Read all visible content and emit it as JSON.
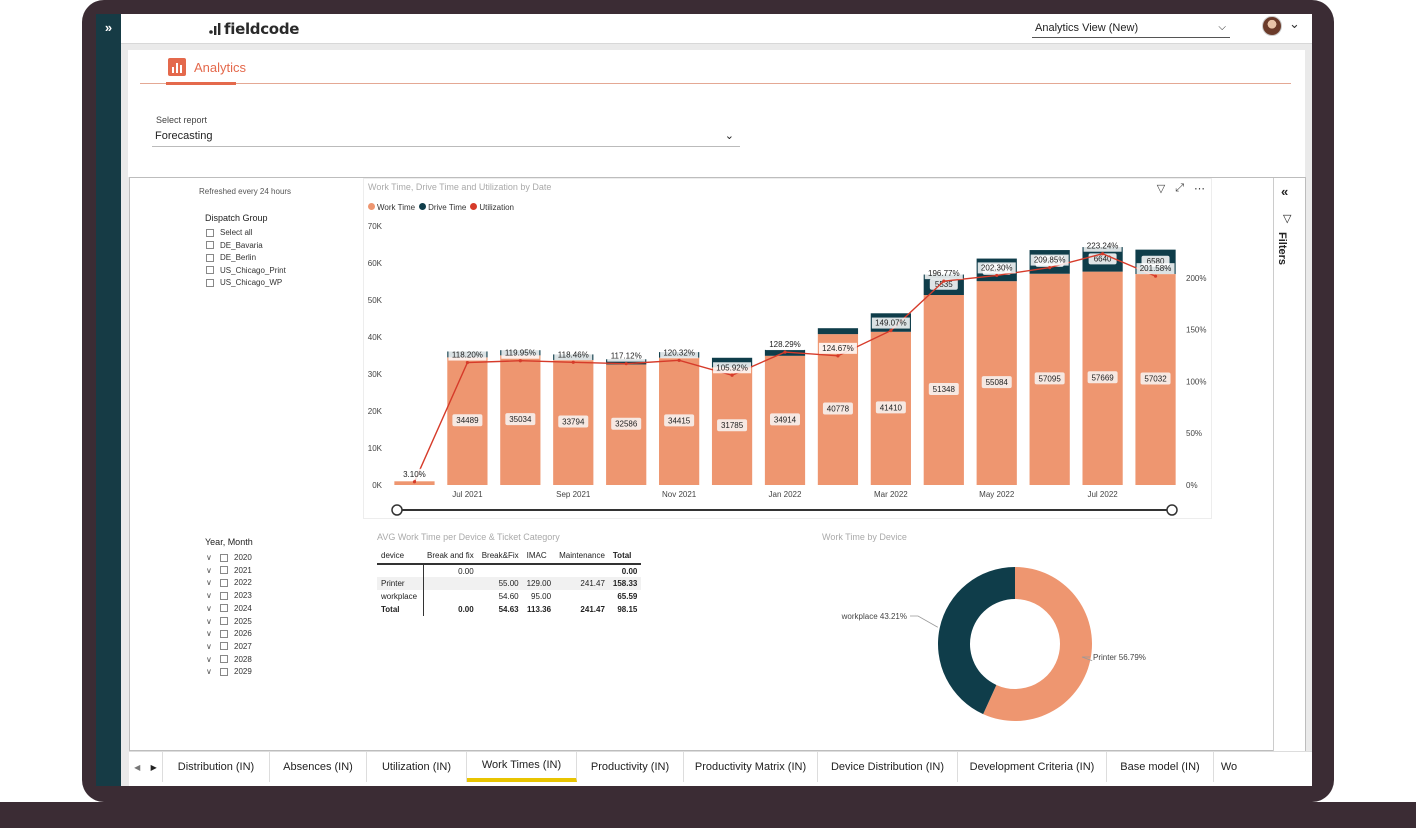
{
  "app": {
    "logo_text": "fieldcode",
    "view_selector": "Analytics View (New)"
  },
  "page": {
    "tab_label": "Analytics",
    "select_report_label": "Select report",
    "select_report_value": "Forecasting"
  },
  "report": {
    "refresh_text": "Refreshed every 24 hours",
    "dispatch_group": {
      "title": "Dispatch Group",
      "items": [
        "Select all",
        "DE_Bavaria",
        "DE_Berlin",
        "US_Chicago_Print",
        "US_Chicago_WP"
      ]
    },
    "year_month": {
      "title": "Year, Month",
      "items": [
        "2020",
        "2021",
        "2022",
        "2023",
        "2024",
        "2025",
        "2026",
        "2027",
        "2028",
        "2029"
      ]
    },
    "filters_label": "Filters"
  },
  "chart_data": [
    {
      "type": "bar",
      "title": "Work Time, Drive Time and Utilization by Date",
      "legend": [
        "Work Time",
        "Drive Time",
        "Utilization"
      ],
      "colors": {
        "work": "#ee9670",
        "drive": "#0f3d4a",
        "util": "#d63b2a"
      },
      "y_ticks": [
        "70K",
        "60K",
        "50K",
        "40K",
        "30K",
        "20K",
        "10K",
        "0K"
      ],
      "y2_ticks": [
        "200%",
        "150%",
        "100%",
        "50%",
        "0%"
      ],
      "x_ticks": [
        "Jul 2021",
        "Sep 2021",
        "Nov 2021",
        "Jan 2022",
        "Mar 2022",
        "May 2022",
        "Jul 2022"
      ],
      "ylim": [
        0,
        70000
      ],
      "y2lim": [
        0,
        250
      ],
      "work": [
        1000,
        34489,
        35034,
        33794,
        32586,
        34415,
        31785,
        34914,
        40778,
        41410,
        51348,
        55084,
        57095,
        57669,
        57032
      ],
      "drive": [
        0,
        1600,
        1400,
        1500,
        1400,
        1500,
        2600,
        1600,
        1600,
        5000,
        5535,
        6115,
        6405,
        6640,
        6580
      ],
      "utilization": [
        3.1,
        118.2,
        119.95,
        118.46,
        117.12,
        120.32,
        105.92,
        128.29,
        124.67,
        149.07,
        196.77,
        202.3,
        209.85,
        223.24,
        201.58
      ],
      "work_labels": [
        "",
        "34489",
        "35034",
        "33794",
        "32586",
        "34415",
        "31785",
        "34914",
        "40778",
        "41410",
        "51348",
        "55084",
        "57095",
        "57669",
        "57032"
      ],
      "drive_labels": [
        "",
        "",
        "",
        "",
        "",
        "",
        "",
        "",
        "",
        "",
        "5535",
        "6115",
        "6405",
        "6640",
        "6580"
      ],
      "util_labels": [
        "3.10%",
        "118.20%",
        "119.95%",
        "118.46%",
        "117.12%",
        "120.32%",
        "105.92%",
        "128.29%",
        "124.67%",
        "149.07%",
        "196.77%",
        "202.30%",
        "209.85%",
        "223.24%",
        "201.58%"
      ]
    },
    {
      "type": "table",
      "title": "AVG Work Time per Device & Ticket Category",
      "headers": [
        "device",
        "Break and fix",
        "Break&Fix",
        "IMAC",
        "Maintenance",
        "Total"
      ],
      "rows": [
        [
          "",
          "0.00",
          "",
          "",
          "",
          "0.00"
        ],
        [
          "Printer",
          "",
          "55.00",
          "129.00",
          "241.47",
          "158.33"
        ],
        [
          "workplace",
          "",
          "54.60",
          "95.00",
          "",
          "65.59"
        ],
        [
          "Total",
          "0.00",
          "54.63",
          "113.36",
          "241.47",
          "98.15"
        ]
      ]
    },
    {
      "type": "pie",
      "title": "Work Time by Device",
      "slices": [
        {
          "label": "Printer",
          "value": 56.79,
          "text": "Printer 56.79%",
          "color": "#ee9670"
        },
        {
          "label": "workplace",
          "value": 43.21,
          "text": "workplace 43.21%",
          "color": "#0f3d4a"
        }
      ]
    }
  ],
  "tabs": [
    "Distribution (IN)",
    "Absences (IN)",
    "Utilization (IN)",
    "Work Times (IN)",
    "Productivity (IN)",
    "Productivity Matrix (IN)",
    "Device Distribution (IN)",
    "Development Criteria (IN)",
    "Base model (IN)",
    "Wo"
  ],
  "active_tab": "Work Times (IN)"
}
